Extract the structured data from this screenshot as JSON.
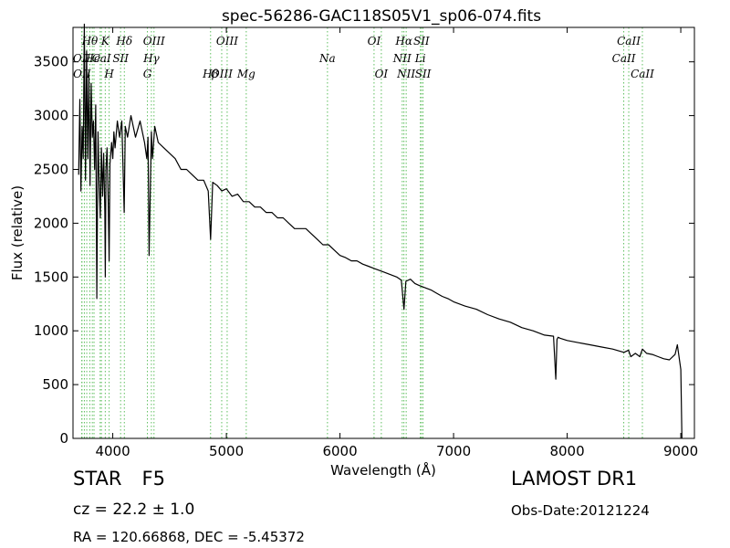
{
  "header": {
    "title": "spec-56286-GAC118S05V1_sp06-074.fits"
  },
  "info": {
    "object_class": "STAR",
    "subclass": "F5",
    "survey": "LAMOST DR1",
    "cz_line": "cz = 22.2  ± 1.0",
    "obs_date": "Obs-Date:20121224",
    "radec": "RA = 120.66868, DEC = -5.45372"
  },
  "colors": {
    "spectrum": "#000000",
    "line_marker": "#5fbf5f",
    "line_label": "#000000"
  },
  "chart_data": {
    "type": "line",
    "title": "spec-56286-GAC118S05V1_sp06-074.fits",
    "xlabel": "Wavelength (Å)",
    "ylabel": "Flux (relative)",
    "xlim": [
      3650,
      9120
    ],
    "ylim": [
      0,
      3820
    ],
    "xticks": [
      4000,
      5000,
      6000,
      7000,
      8000,
      9000
    ],
    "yticks": [
      0,
      500,
      1000,
      1500,
      2000,
      2500,
      3000,
      3500
    ],
    "grid": false,
    "series": [
      {
        "x": [
          3700,
          3710,
          3720,
          3730,
          3740,
          3750,
          3760,
          3770,
          3780,
          3790,
          3800,
          3810,
          3820,
          3830,
          3840,
          3850,
          3860,
          3870,
          3880,
          3890,
          3900,
          3910,
          3920,
          3930,
          3934,
          3940,
          3950,
          3960,
          3968,
          3975,
          3990,
          4000,
          4010,
          4020,
          4040,
          4060,
          4080,
          4101,
          4110,
          4130,
          4160,
          4200,
          4240,
          4280,
          4300,
          4310,
          4320,
          4340,
          4350,
          4370,
          4400,
          4450,
          4500,
          4550,
          4600,
          4650,
          4700,
          4750,
          4800,
          4840,
          4861,
          4880,
          4920,
          4960,
          5000,
          5050,
          5100,
          5150,
          5200,
          5250,
          5300,
          5350,
          5400,
          5450,
          5500,
          5550,
          5600,
          5650,
          5700,
          5750,
          5800,
          5850,
          5900,
          5950,
          6000,
          6050,
          6100,
          6150,
          6200,
          6250,
          6300,
          6350,
          6400,
          6450,
          6500,
          6540,
          6563,
          6580,
          6620,
          6660,
          6700,
          6750,
          6800,
          6850,
          6900,
          6950,
          7000,
          7100,
          7200,
          7300,
          7400,
          7500,
          7600,
          7700,
          7800,
          7880,
          7900,
          7910,
          7920,
          7940,
          8000,
          8100,
          8200,
          8300,
          8400,
          8500,
          8540,
          8560,
          8600,
          8640,
          8662,
          8700,
          8750,
          8800,
          8850,
          8900,
          8950,
          8970,
          9000,
          9010
        ],
        "y": [
          2450,
          3150,
          2300,
          2900,
          2600,
          3850,
          2400,
          3600,
          2600,
          3400,
          2350,
          3300,
          2800,
          2950,
          2500,
          3100,
          1300,
          2850,
          2400,
          2050,
          2700,
          2250,
          2650,
          2100,
          1500,
          2500,
          2700,
          2200,
          1650,
          2550,
          2750,
          2600,
          2850,
          2700,
          2950,
          2800,
          2950,
          2100,
          2900,
          2800,
          3000,
          2800,
          2950,
          2750,
          2600,
          2800,
          1700,
          2850,
          2600,
          2900,
          2750,
          2700,
          2650,
          2600,
          2500,
          2500,
          2450,
          2400,
          2400,
          2300,
          1850,
          2380,
          2350,
          2300,
          2320,
          2250,
          2270,
          2200,
          2200,
          2150,
          2150,
          2100,
          2100,
          2050,
          2050,
          2000,
          1950,
          1950,
          1950,
          1900,
          1850,
          1800,
          1800,
          1750,
          1700,
          1680,
          1650,
          1650,
          1620,
          1600,
          1580,
          1560,
          1540,
          1520,
          1500,
          1470,
          1200,
          1460,
          1480,
          1440,
          1420,
          1400,
          1380,
          1350,
          1320,
          1300,
          1270,
          1230,
          1200,
          1150,
          1110,
          1080,
          1030,
          1000,
          960,
          950,
          550,
          920,
          940,
          930,
          910,
          890,
          870,
          850,
          830,
          800,
          820,
          760,
          790,
          760,
          830,
          790,
          780,
          760,
          740,
          730,
          780,
          870,
          640,
          0
        ]
      }
    ],
    "line_labels": [
      {
        "name": "Hθ",
        "x": 3798,
        "row": 1
      },
      {
        "name": "K",
        "x": 3934,
        "row": 1
      },
      {
        "name": "Hδ",
        "x": 4102,
        "row": 1
      },
      {
        "name": "OIII",
        "x": 4363,
        "row": 1
      },
      {
        "name": "OIII",
        "x": 5007,
        "row": 1
      },
      {
        "name": "OI",
        "x": 6300,
        "row": 1
      },
      {
        "name": "Hα",
        "x": 6563,
        "row": 1
      },
      {
        "name": "SII",
        "x": 6717,
        "row": 1
      },
      {
        "name": "CaII",
        "x": 8542,
        "row": 1
      },
      {
        "name": "OII",
        "x": 3727,
        "row": 2
      },
      {
        "name": "He",
        "x": 3820,
        "row": 2
      },
      {
        "name": "CaI",
        "x": 3900,
        "row": 2
      },
      {
        "name": "SII",
        "x": 4069,
        "row": 2
      },
      {
        "name": "Hγ",
        "x": 4340,
        "row": 2
      },
      {
        "name": "Na",
        "x": 5890,
        "row": 2
      },
      {
        "name": "NII",
        "x": 6548,
        "row": 2
      },
      {
        "name": "Li",
        "x": 6708,
        "row": 2
      },
      {
        "name": "CaII",
        "x": 8498,
        "row": 2
      },
      {
        "name": "OII",
        "x": 3729,
        "row": 3
      },
      {
        "name": "H",
        "x": 3968,
        "row": 3
      },
      {
        "name": "G",
        "x": 4305,
        "row": 3
      },
      {
        "name": "Hβ",
        "x": 4861,
        "row": 3
      },
      {
        "name": "OIII",
        "x": 4959,
        "row": 3
      },
      {
        "name": "Mg",
        "x": 5175,
        "row": 3
      },
      {
        "name": "OI",
        "x": 6364,
        "row": 3
      },
      {
        "name": "NII",
        "x": 6583,
        "row": 3
      },
      {
        "name": "SII",
        "x": 6731,
        "row": 3
      },
      {
        "name": "CaII",
        "x": 8662,
        "row": 3
      }
    ],
    "line_markers": [
      3727,
      3729,
      3750,
      3771,
      3798,
      3820,
      3835,
      3889,
      3900,
      3934,
      3968,
      4069,
      4102,
      4305,
      4340,
      4363,
      4861,
      4959,
      5007,
      5175,
      5890,
      6300,
      6364,
      6548,
      6563,
      6583,
      6708,
      6717,
      6731,
      8498,
      8542,
      8662
    ]
  }
}
